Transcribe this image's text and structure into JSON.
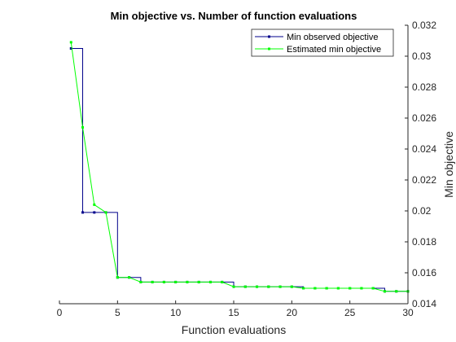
{
  "chart_data": {
    "type": "line",
    "title": "Min objective vs. Number of function evaluations",
    "xlabel": "Function evaluations",
    "ylabel": "Min objective",
    "xlim": [
      0,
      30
    ],
    "ylim": [
      0.014,
      0.032
    ],
    "x_ticks": [
      0,
      5,
      10,
      15,
      20,
      25,
      30
    ],
    "x_tick_labels": [
      "0",
      "5",
      "10",
      "15",
      "20",
      "25",
      "30"
    ],
    "y_ticks": [
      0.014,
      0.016,
      0.018,
      0.02,
      0.022,
      0.024,
      0.026,
      0.028,
      0.03,
      0.032
    ],
    "y_tick_labels": [
      "0.014",
      "0.016",
      "0.018",
      "0.02",
      "0.022",
      "0.024",
      "0.026",
      "0.028",
      "0.03",
      "0.032"
    ],
    "y_axis_side": "right",
    "grid": false,
    "legend_position": "top-right",
    "series": [
      {
        "name": "Min observed objective",
        "color": "#00008b",
        "style": "step",
        "x": [
          1,
          2,
          3,
          4,
          5,
          6,
          7,
          8,
          9,
          10,
          11,
          12,
          13,
          14,
          15,
          16,
          17,
          18,
          19,
          20,
          21,
          22,
          23,
          24,
          25,
          26,
          27,
          28,
          29,
          30
        ],
        "y": [
          0.0305,
          0.0199,
          0.0199,
          0.0199,
          0.0157,
          0.0157,
          0.0154,
          0.0154,
          0.0154,
          0.0154,
          0.0154,
          0.0154,
          0.0154,
          0.0154,
          0.0151,
          0.0151,
          0.0151,
          0.0151,
          0.0151,
          0.0151,
          0.015,
          0.015,
          0.015,
          0.015,
          0.015,
          0.015,
          0.015,
          0.0148,
          0.0148,
          0.0148
        ]
      },
      {
        "name": "Estimated min objective",
        "color": "#00ff00",
        "style": "line",
        "x": [
          1,
          2,
          3,
          4,
          5,
          6,
          7,
          8,
          9,
          10,
          11,
          12,
          13,
          14,
          15,
          16,
          17,
          18,
          19,
          20,
          21,
          22,
          23,
          24,
          25,
          26,
          27,
          28,
          29,
          30
        ],
        "y": [
          0.0309,
          0.0254,
          0.0204,
          0.0199,
          0.0157,
          0.0157,
          0.0154,
          0.0154,
          0.0154,
          0.0154,
          0.0154,
          0.0154,
          0.0154,
          0.0154,
          0.0151,
          0.0151,
          0.0151,
          0.0151,
          0.0151,
          0.0151,
          0.015,
          0.015,
          0.015,
          0.015,
          0.015,
          0.015,
          0.015,
          0.0148,
          0.0148,
          0.0148
        ]
      }
    ]
  }
}
